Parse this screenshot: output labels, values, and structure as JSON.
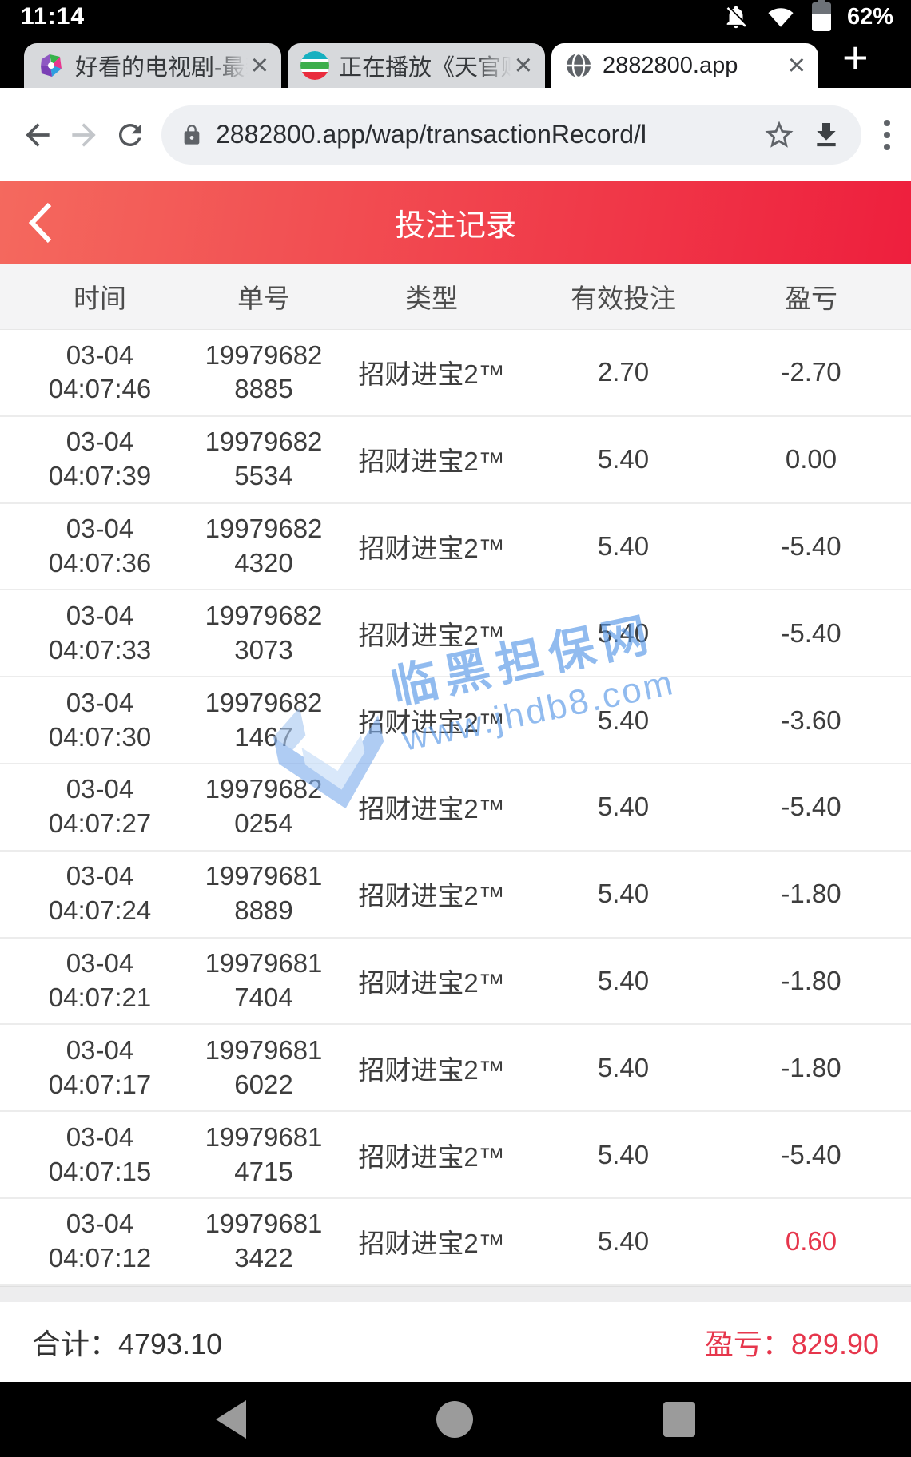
{
  "status_bar": {
    "time": "11:14",
    "battery_percent": "62%",
    "battery_level": 62
  },
  "icons": {
    "close": "×",
    "plus": "+"
  },
  "tab_strip": {
    "tabs": [
      {
        "label": "好看的电视剧-最新",
        "active": false
      },
      {
        "label": "正在播放《天官赐",
        "active": false
      },
      {
        "label": "2882800.app",
        "active": true
      }
    ]
  },
  "url_bar": {
    "url": "2882800.app/wap/transactionRecord/l"
  },
  "app_header": {
    "title": "投注记录",
    "gradient": [
      "#f4695e",
      "#ee1f3d"
    ]
  },
  "table": {
    "headers": [
      "时间",
      "单号",
      "类型",
      "有效投注",
      "盈亏"
    ],
    "rows": [
      {
        "date": "03-04",
        "time": "04:07:46",
        "order_hi": "19979682",
        "order_lo": "8885",
        "type": "招财进宝2™",
        "bet": "2.70",
        "pl": "-2.70"
      },
      {
        "date": "03-04",
        "time": "04:07:39",
        "order_hi": "19979682",
        "order_lo": "5534",
        "type": "招财进宝2™",
        "bet": "5.40",
        "pl": "0.00"
      },
      {
        "date": "03-04",
        "time": "04:07:36",
        "order_hi": "19979682",
        "order_lo": "4320",
        "type": "招财进宝2™",
        "bet": "5.40",
        "pl": "-5.40"
      },
      {
        "date": "03-04",
        "time": "04:07:33",
        "order_hi": "19979682",
        "order_lo": "3073",
        "type": "招财进宝2™",
        "bet": "5.40",
        "pl": "-5.40"
      },
      {
        "date": "03-04",
        "time": "04:07:30",
        "order_hi": "19979682",
        "order_lo": "1467",
        "type": "招财进宝2™",
        "bet": "5.40",
        "pl": "-3.60"
      },
      {
        "date": "03-04",
        "time": "04:07:27",
        "order_hi": "19979682",
        "order_lo": "0254",
        "type": "招财进宝2™",
        "bet": "5.40",
        "pl": "-5.40"
      },
      {
        "date": "03-04",
        "time": "04:07:24",
        "order_hi": "19979681",
        "order_lo": "8889",
        "type": "招财进宝2™",
        "bet": "5.40",
        "pl": "-1.80"
      },
      {
        "date": "03-04",
        "time": "04:07:21",
        "order_hi": "19979681",
        "order_lo": "7404",
        "type": "招财进宝2™",
        "bet": "5.40",
        "pl": "-1.80"
      },
      {
        "date": "03-04",
        "time": "04:07:17",
        "order_hi": "19979681",
        "order_lo": "6022",
        "type": "招财进宝2™",
        "bet": "5.40",
        "pl": "-1.80"
      },
      {
        "date": "03-04",
        "time": "04:07:15",
        "order_hi": "19979681",
        "order_lo": "4715",
        "type": "招财进宝2™",
        "bet": "5.40",
        "pl": "-5.40"
      },
      {
        "date": "03-04",
        "time": "04:07:12",
        "order_hi": "19979681",
        "order_lo": "3422",
        "type": "招财进宝2™",
        "bet": "5.40",
        "pl": "0.60"
      }
    ]
  },
  "watermark": {
    "title": "临黑担保网",
    "url": "www.jhdb8.com",
    "color": "#4f93e6"
  },
  "summary": {
    "total_label": "合计：",
    "total_value": "4793.10",
    "pl_label": "盈亏：",
    "pl_value": "829.90",
    "pl_color": "#e6364c"
  }
}
